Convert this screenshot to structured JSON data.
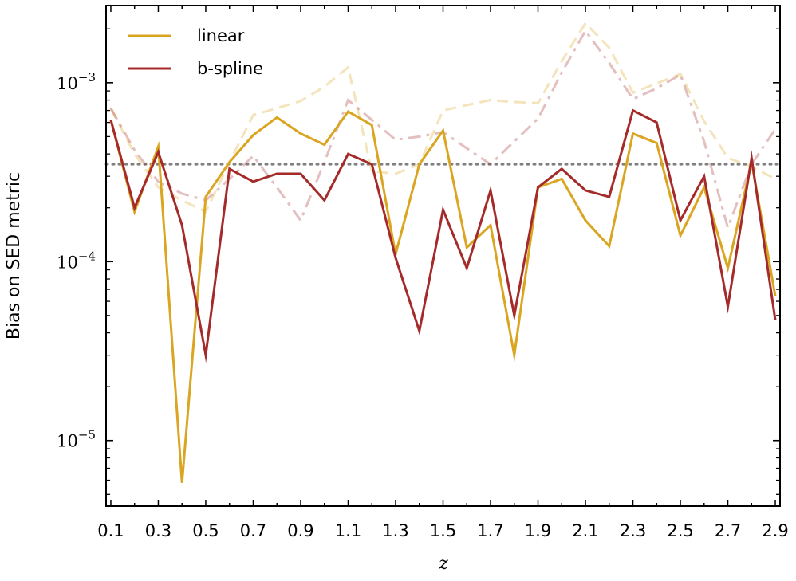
{
  "chart_data": {
    "type": "line",
    "xlabel": "z",
    "ylabel": "Bias on SED metric",
    "yscale": "log",
    "xlim": [
      0.08,
      2.92
    ],
    "ylim": [
      4.3e-06,
      0.0027
    ],
    "x_ticks": [
      0.1,
      0.3,
      0.5,
      0.7,
      0.9,
      1.1,
      1.3,
      1.5,
      1.7,
      1.9,
      2.1,
      2.3,
      2.5,
      2.7,
      2.9
    ],
    "x_tick_labels": [
      "0.1",
      "0.3",
      "0.5",
      "0.7",
      "0.9",
      "1.1",
      "1.3",
      "1.5",
      "1.7",
      "1.9",
      "2.1",
      "2.3",
      "2.5",
      "2.7",
      "2.9"
    ],
    "y_major_ticks": [
      {
        "value": 1e-05,
        "base": "10",
        "exp": "−5"
      },
      {
        "value": 0.0001,
        "base": "10",
        "exp": "−4"
      },
      {
        "value": 0.001,
        "base": "10",
        "exp": "−3"
      }
    ],
    "reference_line": {
      "value": 0.00035,
      "style": "dotted",
      "color": "#808080"
    },
    "legend_position": "top-left",
    "x": [
      0.1,
      0.2,
      0.3,
      0.4,
      0.5,
      0.6,
      0.7,
      0.8,
      0.9,
      1.0,
      1.1,
      1.2,
      1.3,
      1.4,
      1.5,
      1.6,
      1.7,
      1.8,
      1.9,
      2.0,
      2.1,
      2.2,
      2.3,
      2.4,
      2.5,
      2.6,
      2.7,
      2.8,
      2.9
    ],
    "series": [
      {
        "name": "linear",
        "color": "#DAA520",
        "style": "solid",
        "in_legend": true,
        "values": [
          0.00062,
          0.00019,
          0.00044,
          5.8e-06,
          0.00023,
          0.00036,
          0.00051,
          0.00064,
          0.00052,
          0.00045,
          0.00069,
          0.00058,
          0.00011,
          0.00035,
          0.00054,
          0.00012,
          0.00016,
          3e-05,
          0.00026,
          0.00029,
          0.00017,
          0.000122,
          0.00052,
          0.00046,
          0.00014,
          0.00026,
          9.2e-05,
          0.00036,
          6.4e-05
        ]
      },
      {
        "name": "b-spline",
        "color": "#A52A2A",
        "style": "solid",
        "in_legend": true,
        "values": [
          0.00062,
          0.0002,
          0.00041,
          0.00016,
          3e-05,
          0.00033,
          0.00028,
          0.00031,
          0.00031,
          0.00022,
          0.0004,
          0.00035,
          0.000105,
          4.1e-05,
          0.000195,
          9.2e-05,
          0.00025,
          5e-05,
          0.00026,
          0.00033,
          0.00025,
          0.00023,
          0.0007,
          0.0006,
          0.00017,
          0.0003,
          5.6e-05,
          0.00038,
          4.7e-05
        ]
      },
      {
        "name": "",
        "color": "#DAA520",
        "style": "dashed",
        "opacity": 0.3,
        "in_legend": false,
        "values": [
          0.00072,
          0.0004,
          0.00026,
          0.00022,
          0.00019,
          0.00036,
          0.00066,
          0.00072,
          0.00079,
          0.00095,
          0.00122,
          0.00032,
          0.00031,
          0.00035,
          0.0007,
          0.00075,
          0.0008,
          0.00078,
          0.00077,
          0.00132,
          0.00215,
          0.00157,
          0.00088,
          0.00099,
          0.00112,
          0.00061,
          0.00038,
          0.00034,
          0.00029
        ]
      },
      {
        "name": "",
        "color": "#A52A2A",
        "style": "dashdot",
        "opacity": 0.3,
        "in_legend": false,
        "values": [
          0.00072,
          0.00042,
          0.00028,
          0.00024,
          0.00022,
          0.00029,
          0.00039,
          0.00026,
          0.00017,
          0.00036,
          0.0008,
          0.00062,
          0.00048,
          0.0005,
          0.00053,
          0.00043,
          0.00035,
          0.00047,
          0.00063,
          0.00114,
          0.00195,
          0.00129,
          0.00081,
          0.00093,
          0.00111,
          0.00047,
          0.000155,
          0.00035,
          0.00055
        ]
      }
    ]
  }
}
